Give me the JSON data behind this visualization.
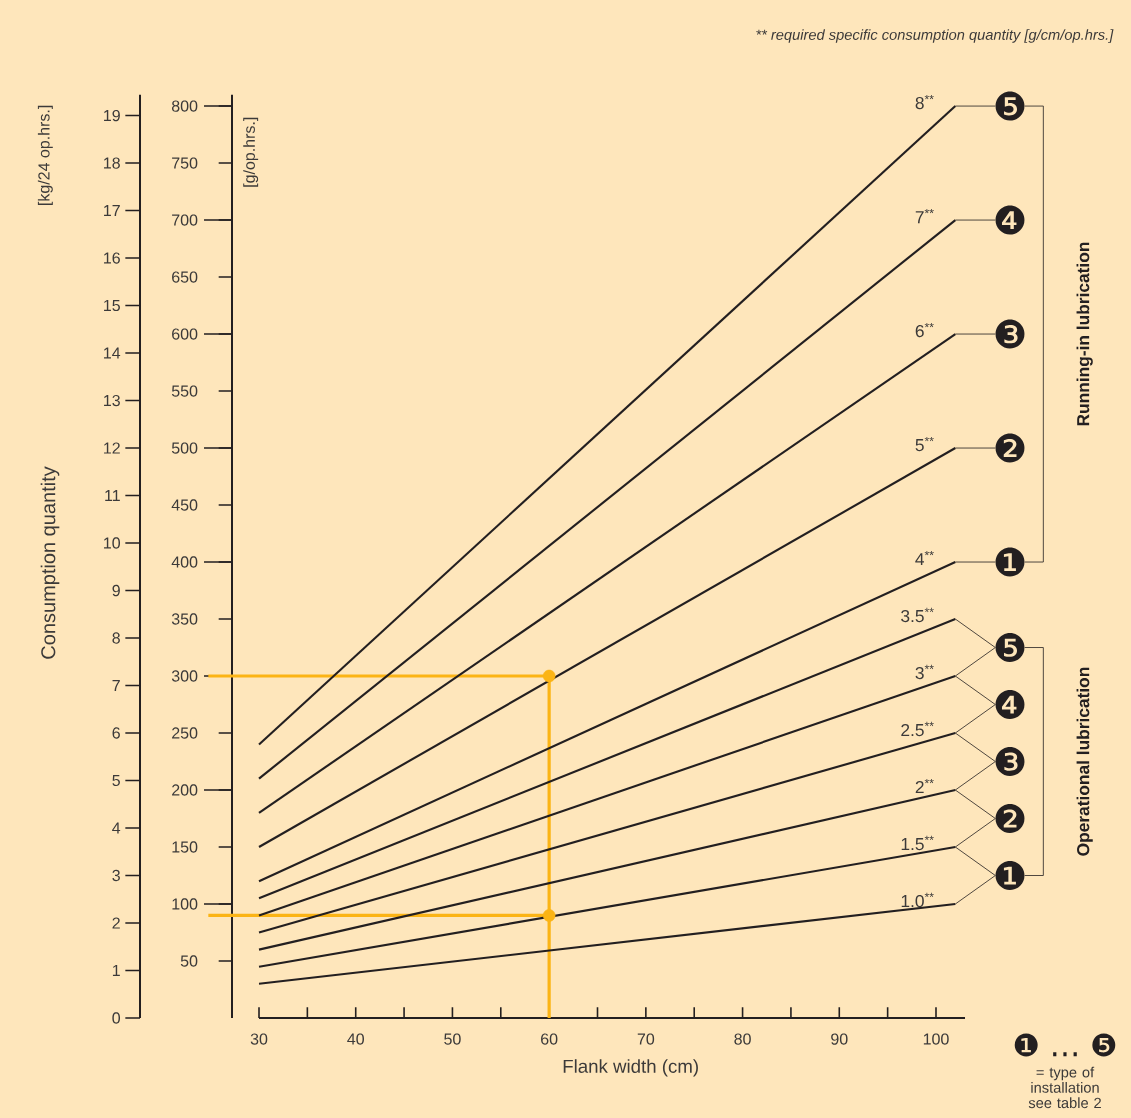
{
  "chart_data": {
    "type": "line",
    "legend": "right",
    "xlabel": "Flank width (cm)",
    "ylabel": "[g/op.hrs.]",
    "y2label": "[kg/24 op.hrs.]",
    "x": [
      30,
      102
    ],
    "xlim": [
      30,
      103
    ],
    "xticks": [
      30,
      {
        "value": 35,
        "label": null
      },
      40,
      {
        "value": 45,
        "label": null
      },
      50,
      {
        "value": 55,
        "label": null
      },
      60,
      {
        "value": 65,
        "label": null
      },
      70,
      {
        "value": 75,
        "label": null
      },
      80,
      {
        "value": 85,
        "label": null
      },
      90,
      {
        "value": 95,
        "label": null
      },
      100
    ],
    "ylim": [
      0,
      810
    ],
    "yticks": [
      50,
      100,
      150,
      200,
      250,
      300,
      350,
      400,
      450,
      500,
      550,
      600,
      650,
      700,
      750,
      800
    ],
    "y2lim": [
      0,
      19.44
    ],
    "y2ticks": [
      0,
      1,
      2,
      3,
      4,
      5,
      6,
      7,
      8,
      9,
      10,
      11,
      12,
      13,
      14,
      15,
      16,
      17,
      18,
      19
    ],
    "series": [
      {
        "name": "8$^{**}$",
        "color": "#231f20",
        "values": [
          240,
          800
        ]
      },
      {
        "name": "7$^{**}$",
        "color": "#231f20",
        "values": [
          210,
          700
        ]
      },
      {
        "name": "6$^{**}$",
        "color": "#231f20",
        "values": [
          180,
          600
        ]
      },
      {
        "name": "5$^{**}$",
        "color": "#231f20",
        "values": [
          150,
          500
        ]
      },
      {
        "name": "4$^{**}$",
        "color": "#231f20",
        "values": [
          120,
          400
        ]
      },
      {
        "name": "3.5$^{**}$",
        "color": "#231f20",
        "values": [
          105,
          350
        ]
      },
      {
        "name": "3$^{**}$",
        "color": "#231f20",
        "values": [
          90,
          300
        ]
      },
      {
        "name": "2.5$^{**}$",
        "color": "#231f20",
        "values": [
          75,
          250
        ]
      },
      {
        "name": "2$^{**}$",
        "color": "#231f20",
        "values": [
          60,
          200
        ]
      },
      {
        "name": "1.5$^{**}$",
        "color": "#231f20",
        "values": [
          45,
          150
        ]
      },
      {
        "name": "1.0$^{**}$",
        "color": "#231f20",
        "values": [
          30,
          100
        ]
      },
      {
        "type": "scatter",
        "color": "#fbb415",
        "x": [
          60,
          60
        ],
        "values": [
          300,
          90
        ]
      }
    ],
    "ref_lines": [
      {
        "axis": "x",
        "value": 60,
        "color": "#fbb415"
      },
      {
        "axis": "y",
        "value": 300,
        "color": "#fbb415"
      },
      {
        "axis": "y",
        "value": 90,
        "color": "#fbb415"
      }
    ],
    "annotations": [
      "❺",
      "❹",
      "❸",
      "❷",
      "❶",
      "❺",
      "❹",
      "❸",
      "❷",
      "❶",
      "Running-in lubrication",
      "Operational lubrication",
      "** required specific consumption quantity [g/cm/op.hrs.]",
      "Consumption quantity",
      "❶ … ❺",
      "= type of installation see table 2"
    ]
  }
}
